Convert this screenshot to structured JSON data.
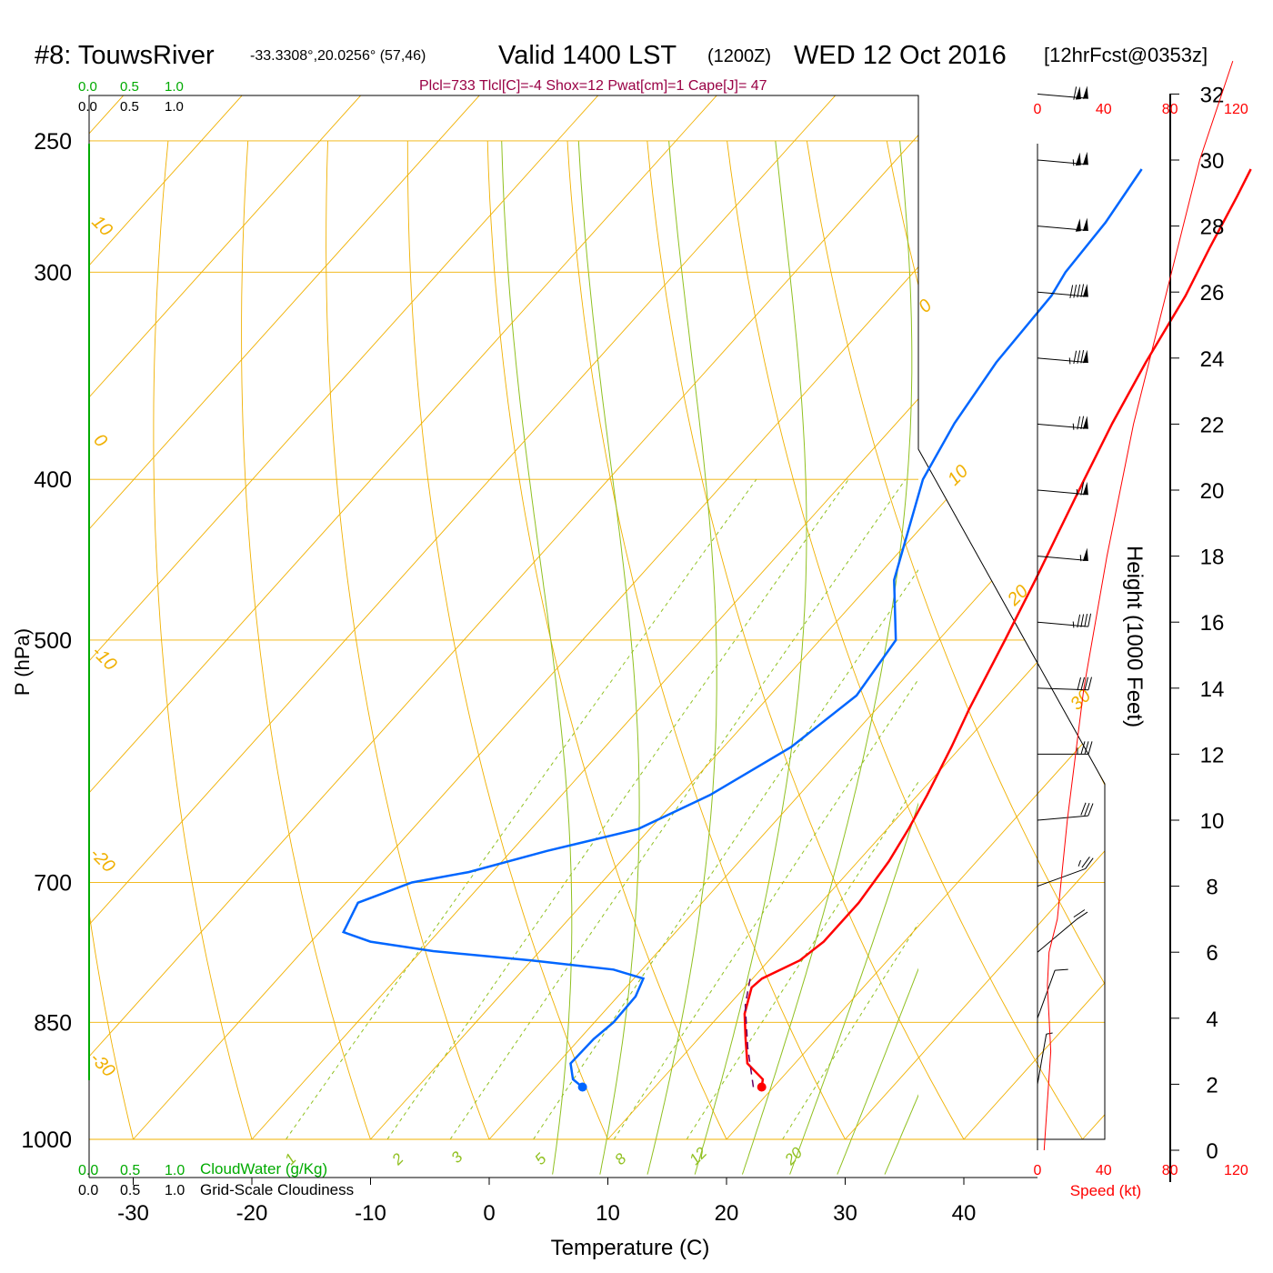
{
  "header": {
    "station": "#8: TouwsRiver",
    "coords": "-33.3308°,20.0256° (57,46)",
    "valid": "Valid 1400 LST",
    "zulu": "(1200Z)",
    "date": "WED 12 Oct 2016",
    "forecast": "[12hrFcst@0353z]",
    "indices": "Plcl=733 Tlcl[C]=-4 Shox=12 Pwat[cm]=1 Cape[J]= 47"
  },
  "cloud_scale": {
    "top_values": [
      "0.0",
      "0.5",
      "1.0"
    ],
    "bottom_cloudwater_label": "CloudWater (g/Kg)",
    "bottom_cloudiness_label": "Grid-Scale Cloudiness"
  },
  "colors": {
    "temperature": "#ff0000",
    "dewpoint": "#0066ff",
    "parcel": "#660066",
    "isotherm": "#f0b000",
    "dry_adiabat": "#f0b000",
    "moist_adiabat": "#90c020",
    "mixing_ratio": "#90c020",
    "wind_speed": "#ff0000",
    "cloud": "#00aa00",
    "indices": "#990044"
  },
  "chart_data": {
    "type": "line",
    "chart_kind": "Skew-T log-P sounding",
    "xlabel": "Temperature (C)",
    "ylabel": "P (hPa)",
    "right_ylabel": "Height (1000 Feet)",
    "x_ticks": [
      -30,
      -20,
      -10,
      0,
      10,
      20,
      30,
      40
    ],
    "pressure_ticks": [
      250,
      300,
      400,
      500,
      700,
      850,
      1000
    ],
    "height_ticks": [
      0,
      2,
      4,
      6,
      8,
      10,
      12,
      14,
      16,
      18,
      20,
      22,
      24,
      26,
      28,
      30,
      32
    ],
    "isotherm_labels": [
      "10",
      "0",
      "-10",
      "-20",
      "-30",
      "0",
      "10",
      "20",
      "30"
    ],
    "mixing_ratio_labels": [
      "1",
      "2",
      "3",
      "5",
      "8",
      "12",
      "20"
    ],
    "mixing_ratio_values": [
      1,
      2,
      3,
      5,
      8,
      12,
      20
    ],
    "moist_adiabat_thetas": [
      8,
      12,
      16,
      20,
      24,
      28,
      32,
      36,
      40
    ],
    "dry_adiabat_thetas": [
      -30,
      -20,
      -10,
      0,
      10,
      20,
      30,
      40,
      50,
      60,
      70,
      80,
      90
    ],
    "series": [
      {
        "name": "Temperature",
        "points": [
          [
            930,
            19
          ],
          [
            920,
            18.5
          ],
          [
            900,
            16
          ],
          [
            870,
            14
          ],
          [
            840,
            12
          ],
          [
            810,
            10.6
          ],
          [
            800,
            10.8
          ],
          [
            780,
            12.6
          ],
          [
            760,
            13.2
          ],
          [
            720,
            13.2
          ],
          [
            680,
            12.6
          ],
          [
            650,
            11.8
          ],
          [
            620,
            10.8
          ],
          [
            580,
            9.2
          ],
          [
            550,
            7.8
          ],
          [
            500,
            5.6
          ],
          [
            460,
            3.6
          ],
          [
            430,
            1.9
          ],
          [
            400,
            0.1
          ],
          [
            370,
            -1.8
          ],
          [
            340,
            -3.6
          ],
          [
            310,
            -5.3
          ],
          [
            290,
            -6.9
          ],
          [
            270,
            -8.5
          ],
          [
            260,
            -9.4
          ]
        ]
      },
      {
        "name": "Dew point",
        "points": [
          [
            930,
            3.9
          ],
          [
            920,
            2.5
          ],
          [
            900,
            1.1
          ],
          [
            870,
            1.2
          ],
          [
            850,
            1.6
          ],
          [
            820,
            1.5
          ],
          [
            800,
            0.8
          ],
          [
            790,
            -2.4
          ],
          [
            780,
            -10
          ],
          [
            770,
            -19
          ],
          [
            760,
            -25
          ],
          [
            750,
            -28
          ],
          [
            720,
            -29
          ],
          [
            700,
            -26
          ],
          [
            690,
            -22
          ],
          [
            670,
            -17
          ],
          [
            650,
            -11
          ],
          [
            620,
            -7.5
          ],
          [
            580,
            -4.3
          ],
          [
            540,
            -2.7
          ],
          [
            500,
            -3.6
          ],
          [
            460,
            -8.3
          ],
          [
            400,
            -13.5
          ],
          [
            370,
            -15.1
          ],
          [
            340,
            -16.2
          ],
          [
            310,
            -16.6
          ],
          [
            300,
            -17.2
          ],
          [
            280,
            -17.6
          ],
          [
            260,
            -18.6
          ]
        ]
      },
      {
        "name": "Parcel",
        "points": [
          [
            930,
            18.3
          ],
          [
            880,
            14.8
          ],
          [
            830,
            11.4
          ],
          [
            800,
            9.8
          ]
        ]
      },
      {
        "name": "Wind speed (kt)",
        "axis": [
          0,
          120
        ],
        "points": [
          [
            0,
            4
          ],
          [
            3,
            8
          ],
          [
            5,
            6
          ],
          [
            6,
            7
          ],
          [
            7,
            12
          ],
          [
            10,
            18
          ],
          [
            14,
            28
          ],
          [
            18,
            42
          ],
          [
            22,
            58
          ],
          [
            26,
            78
          ],
          [
            30,
            98
          ],
          [
            33,
            118
          ]
        ]
      }
    ],
    "wind_barbs": [
      {
        "height_kft": 32,
        "speed_kt": 110,
        "dir_deg": 275
      },
      {
        "height_kft": 30,
        "speed_kt": 105,
        "dir_deg": 275
      },
      {
        "height_kft": 28,
        "speed_kt": 100,
        "dir_deg": 275
      },
      {
        "height_kft": 26,
        "speed_kt": 90,
        "dir_deg": 275
      },
      {
        "height_kft": 24,
        "speed_kt": 85,
        "dir_deg": 275
      },
      {
        "height_kft": 22,
        "speed_kt": 75,
        "dir_deg": 275
      },
      {
        "height_kft": 20,
        "speed_kt": 65,
        "dir_deg": 275
      },
      {
        "height_kft": 18,
        "speed_kt": 55,
        "dir_deg": 275
      },
      {
        "height_kft": 16,
        "speed_kt": 45,
        "dir_deg": 275
      },
      {
        "height_kft": 14,
        "speed_kt": 40,
        "dir_deg": 272
      },
      {
        "height_kft": 12,
        "speed_kt": 35,
        "dir_deg": 270
      },
      {
        "height_kft": 10,
        "speed_kt": 30,
        "dir_deg": 265
      },
      {
        "height_kft": 8,
        "speed_kt": 25,
        "dir_deg": 250
      },
      {
        "height_kft": 6,
        "speed_kt": 20,
        "dir_deg": 230
      },
      {
        "height_kft": 4,
        "speed_kt": 10,
        "dir_deg": 200
      },
      {
        "height_kft": 2,
        "speed_kt": 5,
        "dir_deg": 190
      }
    ],
    "wind_speed_ticks": [
      0,
      40,
      80,
      120
    ],
    "wind_speed_label": "Speed (kt)"
  }
}
